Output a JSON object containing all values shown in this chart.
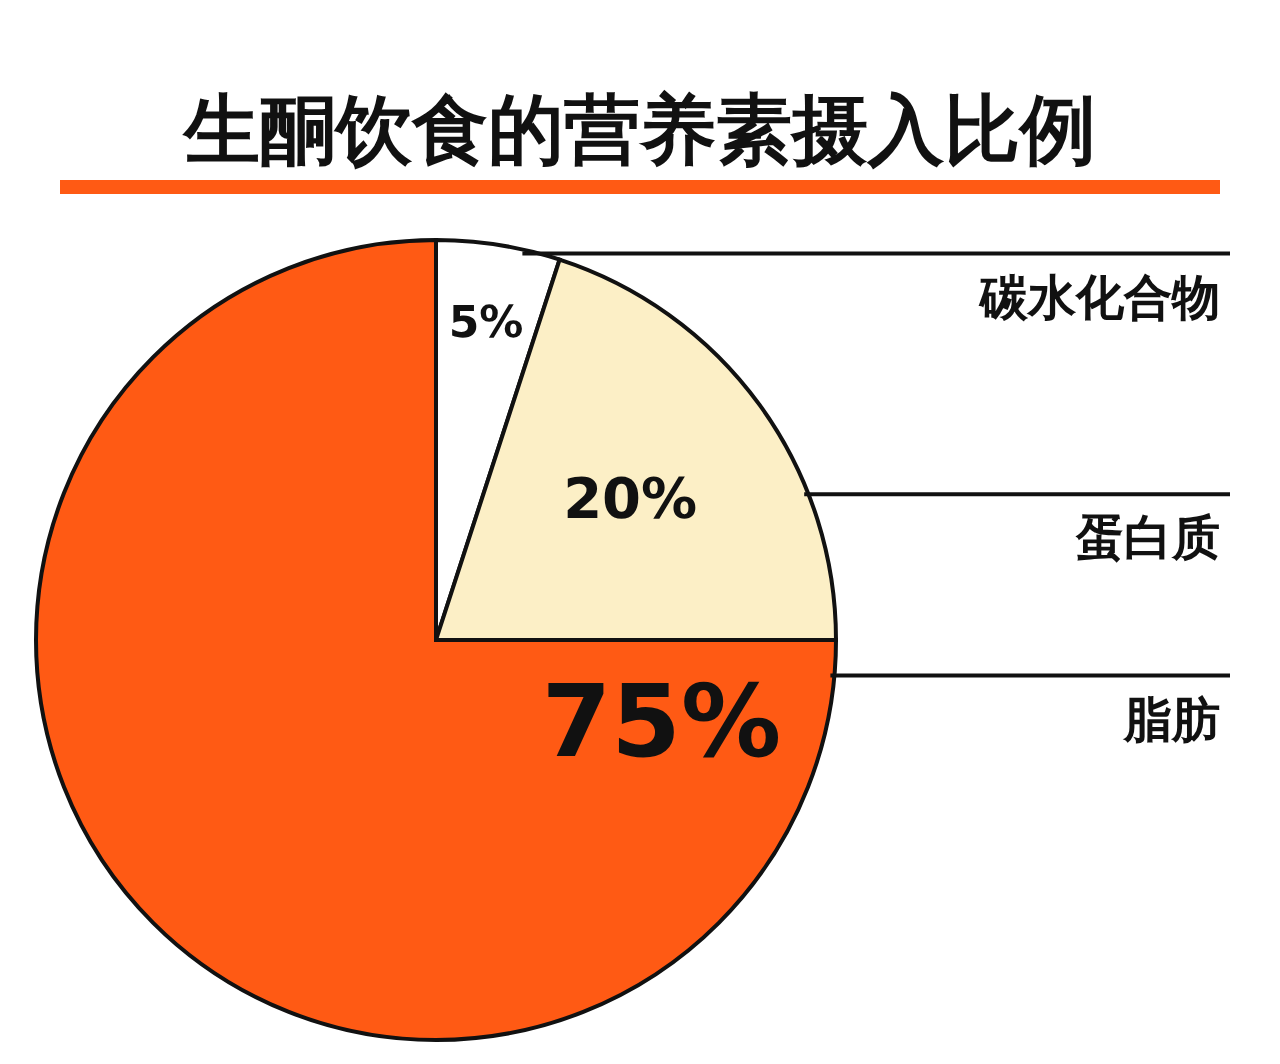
{
  "chart_data": {
    "type": "pie",
    "title": "生酮饮食的营养素摄入比例",
    "categories": [
      "碳水化合物",
      "蛋白质",
      "脂肪"
    ],
    "values": [
      5,
      20,
      75
    ],
    "value_labels": [
      "5%",
      "20%",
      "75%"
    ],
    "colors": [
      "#ffffff",
      "#fcefc6",
      "#ff5a14"
    ]
  }
}
